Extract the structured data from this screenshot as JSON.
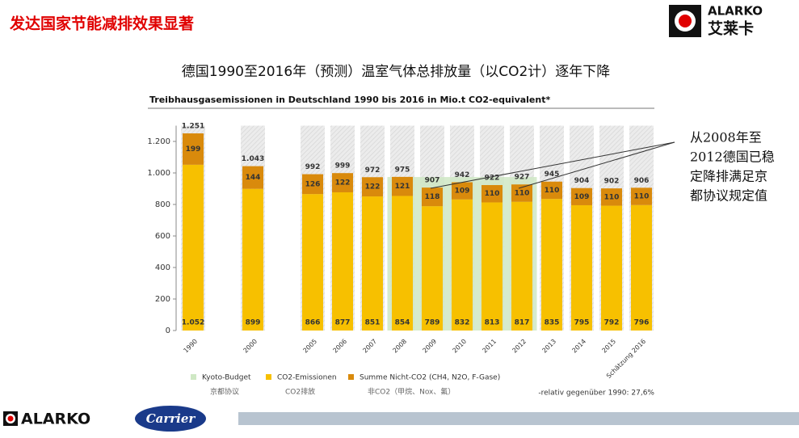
{
  "header": {
    "title": "发达国家节能减排效果显著",
    "logo_text": "ALARKO",
    "logo_sub": "艾莱卡"
  },
  "footer": {
    "logo_left": "ALARKO",
    "logo_right": "Carrier"
  },
  "chart_data": {
    "type": "bar",
    "title": "德国1990至2016年（预测）温室气体总排放量（以CO2计）逐年下降",
    "subtitle": "Treibhausgasemissionen in Deutschland 1990 bis 2016 in Mio.t CO2-equivalent*",
    "categories": [
      "1990",
      "2000",
      "2005",
      "2006",
      "2007",
      "2008",
      "2009",
      "2010",
      "2011",
      "2012",
      "2013",
      "2014",
      "2015",
      "Schätzung 2016"
    ],
    "series": [
      {
        "name": "Kyoto-Budget",
        "color": "#cfe8c4",
        "values": [
          null,
          null,
          null,
          null,
          null,
          974,
          974,
          974,
          974,
          974,
          null,
          null,
          null,
          null
        ],
        "legend_note": "京都协议"
      },
      {
        "name": "CO2-Emissionen",
        "color": "#f7c000",
        "values": [
          1052,
          899,
          866,
          877,
          851,
          854,
          789,
          832,
          813,
          817,
          835,
          795,
          792,
          796
        ],
        "value_labels": [
          "1.052",
          "899",
          "866",
          "877",
          "851",
          "854",
          "789",
          "832",
          "813",
          "817",
          "835",
          "795",
          "792",
          "796"
        ],
        "legend_note": "CO2排放"
      },
      {
        "name": "Summe Nicht-CO2 (CH4, N2O, F-Gase)",
        "color": "#d98a0c",
        "values": [
          199,
          144,
          126,
          122,
          122,
          121,
          118,
          109,
          110,
          110,
          110,
          109,
          110,
          110
        ],
        "legend_note": "非CO2（甲烷、Nox、氟）"
      }
    ],
    "totals": {
      "values": [
        1251,
        1043,
        992,
        999,
        972,
        975,
        907,
        942,
        922,
        927,
        945,
        904,
        902,
        906
      ],
      "value_labels": [
        "1.251",
        "1.043",
        "992",
        "999",
        "972",
        "975",
        "907",
        "942",
        "922",
        "927",
        "945",
        "904",
        "902",
        "906"
      ]
    },
    "ylim": [
      0,
      1300
    ],
    "yticks": [
      0,
      200,
      400,
      600,
      800,
      {
        "value": 1000,
        "label": "1.000"
      },
      {
        "value": 1200,
        "label": "1.200"
      }
    ],
    "note": "-relativ gegenüber 1990: 27,6%",
    "annotation": [
      "从2008年至",
      "2012德国已稳",
      "定降排满足京",
      "都协议规定值"
    ]
  }
}
